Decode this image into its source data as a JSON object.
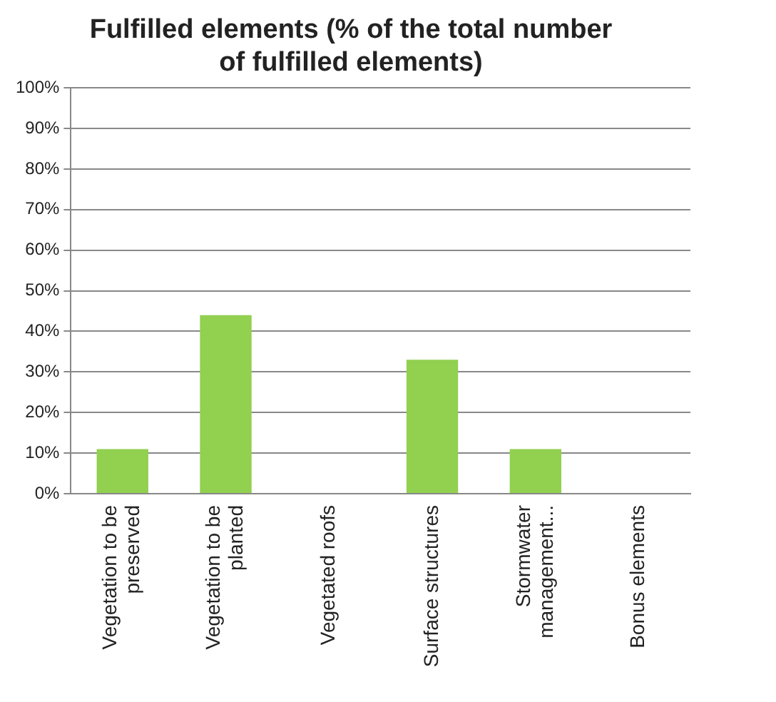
{
  "chart_data": {
    "type": "bar",
    "title": "Fulfilled elements (% of the total number of fulfilled elements)",
    "categories": [
      "Vegetation to be preserved",
      "Vegetation to be planted",
      "Vegetated roofs",
      "Surface structures",
      "Stormwater management...",
      "Bonus elements"
    ],
    "values": [
      11,
      44,
      0,
      33,
      11,
      0
    ],
    "color": "#92d050",
    "ylim": [
      0,
      100
    ],
    "yticks": [
      {
        "value": 0,
        "label": "0%"
      },
      {
        "value": 10,
        "label": "10%"
      },
      {
        "value": 20,
        "label": "20%"
      },
      {
        "value": 30,
        "label": "30%"
      },
      {
        "value": 40,
        "label": "40%"
      },
      {
        "value": 50,
        "label": "50%"
      },
      {
        "value": 60,
        "label": "60%"
      },
      {
        "value": 70,
        "label": "70%"
      },
      {
        "value": 80,
        "label": "80%"
      },
      {
        "value": 90,
        "label": "90%"
      },
      {
        "value": 100,
        "label": "100%"
      }
    ],
    "grid": "y",
    "legend": false
  }
}
